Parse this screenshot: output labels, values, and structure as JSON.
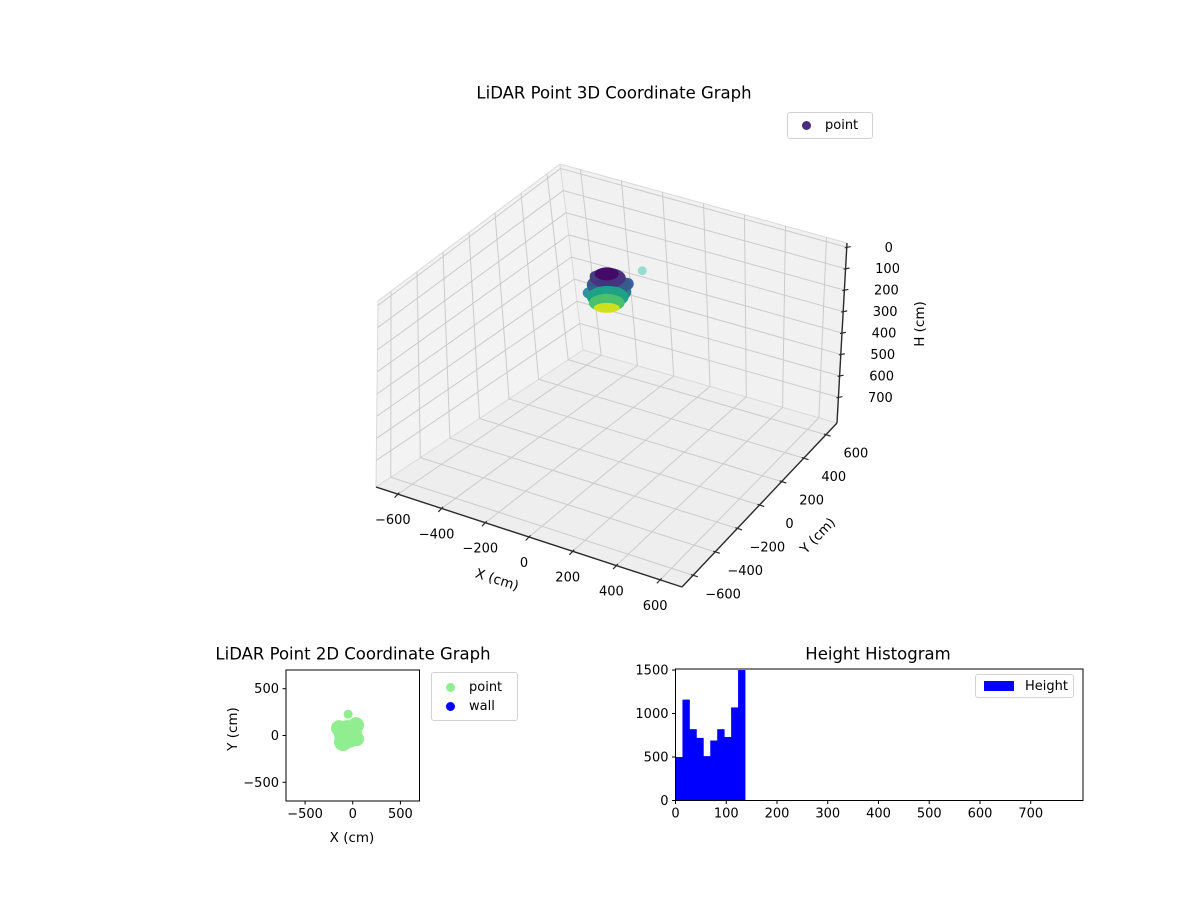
{
  "figure": {
    "background": "#ffffff",
    "text_color": "#000000"
  },
  "chart_data": [
    {
      "type": "scatter",
      "projection": "3d",
      "title": "LiDAR Point 3D Coordinate Graph",
      "xlabel": "X (cm)",
      "ylabel": "Y (cm)",
      "zlabel": "H (cm)",
      "xticks": [
        -600,
        -400,
        -200,
        0,
        200,
        400,
        600
      ],
      "yticks": [
        -600,
        -400,
        -200,
        0,
        200,
        400,
        600
      ],
      "zticks": [
        0,
        100,
        200,
        300,
        400,
        500,
        600,
        700
      ],
      "xlim": [
        -700,
        700
      ],
      "ylim": [
        -700,
        700
      ],
      "zlim": [
        -20,
        820
      ],
      "z_axis_inverted": true,
      "grid": true,
      "colormap": "viridis",
      "legend": {
        "label": "point",
        "marker_color": "#472D7B",
        "position": "upper right"
      },
      "series": [
        {
          "name": "point",
          "description": "dense LiDAR point cluster colored by height (viridis: purple=low H, yellow=high H)",
          "cluster_center_cm": [
            -50,
            30,
            80
          ],
          "cluster_radius_cm": 150,
          "cluster_h_range_cm": [
            0,
            137
          ],
          "outlier_point_cm": [
            40,
            150,
            20
          ]
        }
      ]
    },
    {
      "type": "scatter",
      "projection": "2d",
      "title": "LiDAR Point 2D Coordinate Graph",
      "xlabel": "X (cm)",
      "ylabel": "Y (cm)",
      "xticks": [
        -500,
        0,
        500
      ],
      "yticks": [
        -500,
        0,
        500
      ],
      "xlim": [
        -700,
        700
      ],
      "ylim": [
        -700,
        700
      ],
      "legend": [
        {
          "label": "point",
          "color": "#90EE90"
        },
        {
          "label": "wall",
          "color": "#0000FF"
        }
      ],
      "series": [
        {
          "name": "point",
          "color": "#90EE90",
          "cluster_center_cm": [
            -50,
            15
          ],
          "cluster_radius_cm": 150,
          "outlier_point_cm": [
            -48,
            228
          ]
        },
        {
          "name": "wall",
          "color": "#0000FF",
          "points": []
        }
      ]
    },
    {
      "type": "bar",
      "subtype": "histogram",
      "title": "Height Histogram",
      "xlabel": "",
      "ylabel": "",
      "xticks": [
        0,
        100,
        200,
        300,
        400,
        500,
        600,
        700
      ],
      "yticks": [
        0,
        500,
        1000,
        1500
      ],
      "xlim": [
        0,
        803
      ],
      "ylim": [
        0,
        1512
      ],
      "bar_color": "#0000FF",
      "bin_start": 0,
      "bin_width": 13.7,
      "values": [
        500,
        1160,
        820,
        720,
        510,
        690,
        820,
        730,
        1070,
        1500
      ],
      "legend": {
        "label": "Height",
        "color": "#0000FF",
        "position": "upper right"
      }
    }
  ]
}
